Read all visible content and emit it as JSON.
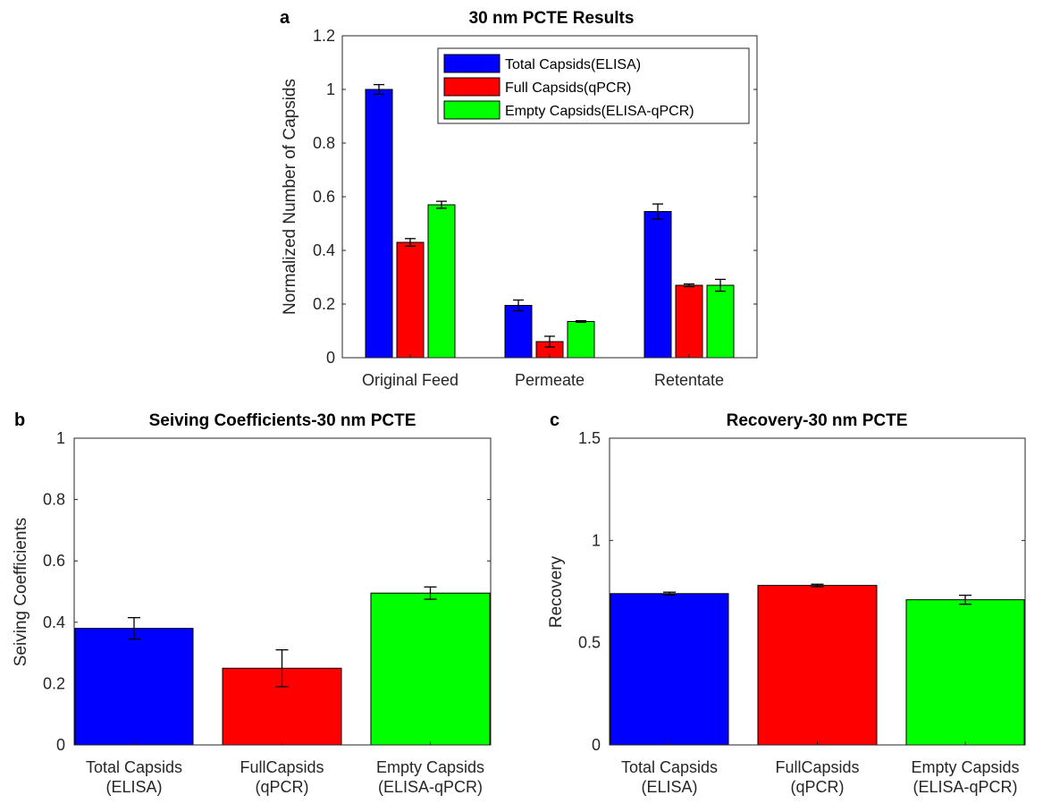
{
  "chart_data": [
    {
      "panel": "a",
      "type": "bar",
      "title": "30 nm PCTE Results",
      "xlabel": "",
      "ylabel": "Normalized Number of Capsids",
      "ylim": [
        0,
        1.2
      ],
      "yticks": [
        0,
        0.2,
        0.4,
        0.6,
        0.8,
        1,
        1.2
      ],
      "ytick_labels": [
        "0",
        "0.2",
        "0.4",
        "0.6",
        "0.8",
        "1",
        "1.2"
      ],
      "categories": [
        "Original Feed",
        "Permeate",
        "Retentate"
      ],
      "legend_position": "top-right",
      "series": [
        {
          "name": "Total Capsids(ELISA)",
          "color": "#0000ff",
          "values": [
            1.0,
            0.195,
            0.545
          ],
          "errors": [
            0.018,
            0.02,
            0.028
          ]
        },
        {
          "name": "Full Capsids(qPCR)",
          "color": "#ff0000",
          "values": [
            0.43,
            0.06,
            0.27
          ],
          "errors": [
            0.014,
            0.02,
            0.005
          ]
        },
        {
          "name": "Empty Capsids(ELISA-qPCR)",
          "color": "#00ff00",
          "values": [
            0.57,
            0.135,
            0.27
          ],
          "errors": [
            0.013,
            0.003,
            0.022
          ]
        }
      ]
    },
    {
      "panel": "b",
      "type": "bar",
      "title": "Seiving Coefficients-30 nm PCTE",
      "xlabel": "",
      "ylabel": "Seiving Coefficients",
      "ylim": [
        0,
        1
      ],
      "yticks": [
        0,
        0.2,
        0.4,
        0.6,
        0.8,
        1
      ],
      "ytick_labels": [
        "0",
        "0.2",
        "0.4",
        "0.6",
        "0.8",
        "1"
      ],
      "categories": [
        [
          "Total Capsids",
          "(ELISA)"
        ],
        [
          "FullCapsids",
          "(qPCR)"
        ],
        [
          "Empty Capsids",
          "(ELISA-qPCR)"
        ]
      ],
      "colors": [
        "#0000ff",
        "#ff0000",
        "#00ff00"
      ],
      "values": [
        0.38,
        0.25,
        0.495
      ],
      "errors": [
        0.035,
        0.06,
        0.02
      ]
    },
    {
      "panel": "c",
      "type": "bar",
      "title": "Recovery-30 nm PCTE",
      "xlabel": "",
      "ylabel": "Recovery",
      "ylim": [
        0,
        1.5
      ],
      "yticks": [
        0,
        0.5,
        1,
        1.5
      ],
      "ytick_labels": [
        "0",
        "0.5",
        "1",
        "1.5"
      ],
      "categories": [
        [
          "Total Capsids",
          "(ELISA)"
        ],
        [
          "FullCapsids",
          "(qPCR)"
        ],
        [
          "Empty Capsids",
          "(ELISA-qPCR)"
        ]
      ],
      "colors": [
        "#0000ff",
        "#ff0000",
        "#00ff00"
      ],
      "values": [
        0.74,
        0.78,
        0.71
      ],
      "errors": [
        0.007,
        0.006,
        0.022
      ]
    }
  ]
}
